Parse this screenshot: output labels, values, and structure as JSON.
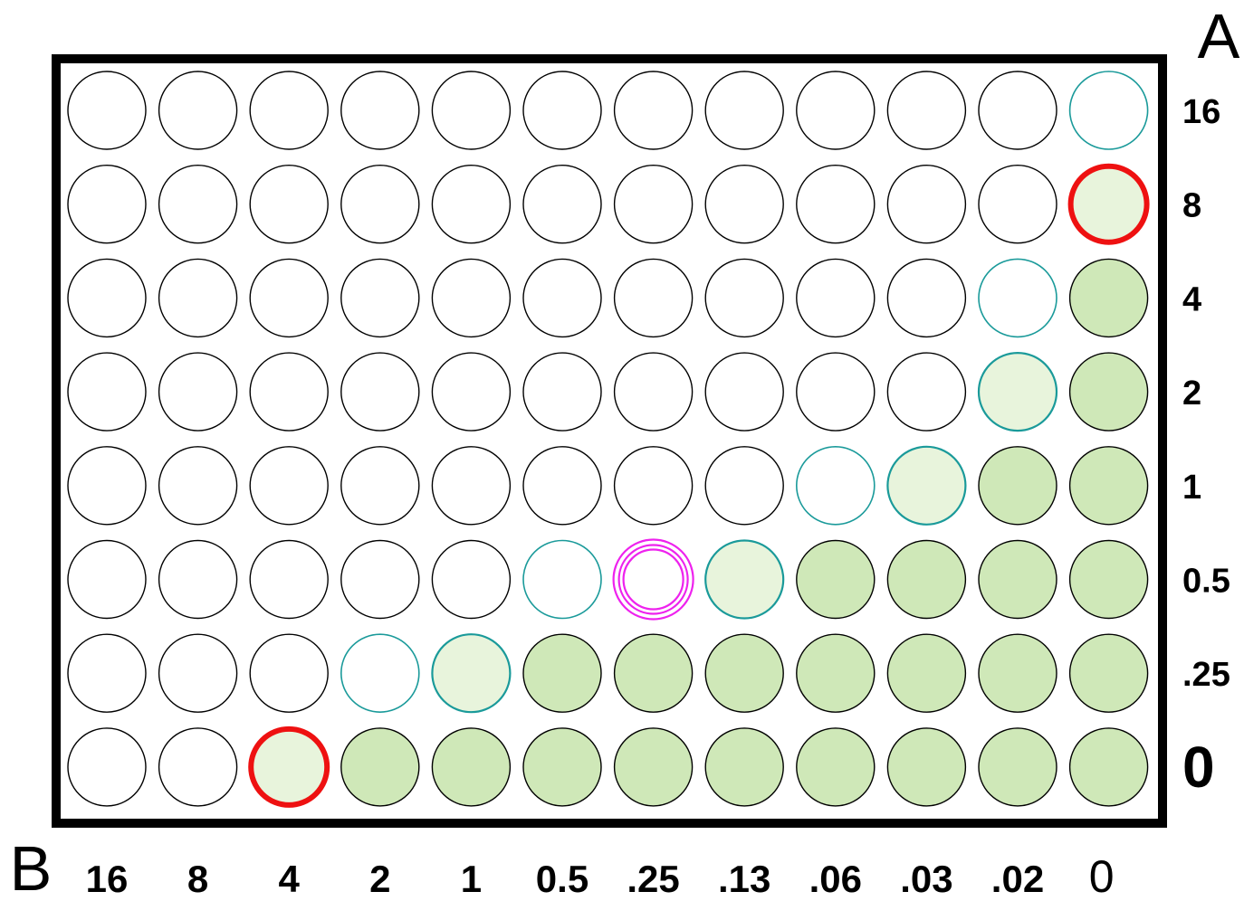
{
  "axis_a_label": "A",
  "axis_b_label": "B",
  "row_labels": [
    "16",
    "8",
    "4",
    "2",
    "1",
    "0.5",
    ".25",
    "0"
  ],
  "column_labels": [
    "16",
    "8",
    "4",
    "2",
    "1",
    "0.5",
    ".25",
    ".13",
    ".06",
    ".03",
    ".02",
    "0"
  ],
  "colors": {
    "border": "#000000",
    "well_outline": "#000000",
    "teal_outline": "#1a9a9a",
    "growth_fill": "#cfe8b8",
    "light_growth_fill": "#e8f4dc",
    "red_highlight": "#ee1111",
    "magenta_highlight": "#ee22ee"
  },
  "wells": [
    [
      "empty",
      "empty",
      "empty",
      "empty",
      "empty",
      "empty",
      "empty",
      "empty",
      "empty",
      "empty",
      "empty",
      "teal"
    ],
    [
      "empty",
      "empty",
      "empty",
      "empty",
      "empty",
      "empty",
      "empty",
      "empty",
      "empty",
      "empty",
      "empty",
      "light-red"
    ],
    [
      "empty",
      "empty",
      "empty",
      "empty",
      "empty",
      "empty",
      "empty",
      "empty",
      "empty",
      "empty",
      "teal",
      "growth"
    ],
    [
      "empty",
      "empty",
      "empty",
      "empty",
      "empty",
      "empty",
      "empty",
      "empty",
      "empty",
      "empty",
      "light-teal",
      "growth"
    ],
    [
      "empty",
      "empty",
      "empty",
      "empty",
      "empty",
      "empty",
      "empty",
      "empty",
      "teal",
      "light-teal",
      "growth",
      "growth"
    ],
    [
      "empty",
      "empty",
      "empty",
      "empty",
      "empty",
      "teal",
      "magenta",
      "light-teal",
      "growth",
      "growth",
      "growth",
      "growth"
    ],
    [
      "empty",
      "empty",
      "empty",
      "teal",
      "light-teal",
      "growth",
      "growth",
      "growth",
      "growth",
      "growth",
      "growth",
      "growth"
    ],
    [
      "empty",
      "empty",
      "light-red",
      "growth",
      "growth",
      "growth",
      "growth",
      "growth",
      "growth",
      "growth",
      "growth",
      "growth"
    ]
  ]
}
